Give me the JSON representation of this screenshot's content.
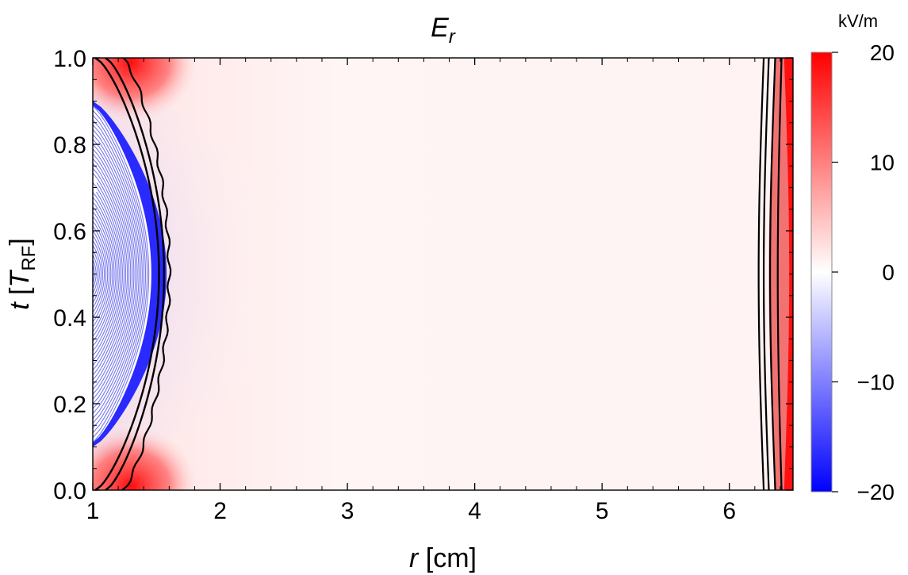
{
  "chart_data": {
    "type": "heatmap",
    "title_main": "E",
    "title_sub": "r",
    "xlabel_var": "r",
    "xlabel_unit": "[cm]",
    "ylabel_var": "t",
    "ylabel_unit_open": "[",
    "ylabel_unit_var": "T",
    "ylabel_unit_sub": "RF",
    "ylabel_unit_close": "]",
    "xlim": [
      1,
      6.5
    ],
    "ylim": [
      0,
      1
    ],
    "x_ticks": [
      "1",
      "2",
      "3",
      "4",
      "5",
      "6"
    ],
    "x_tick_values": [
      1,
      2,
      3,
      4,
      5,
      6
    ],
    "y_ticks": [
      "0.0",
      "0.2",
      "0.4",
      "0.6",
      "0.8",
      "1.0"
    ],
    "y_tick_values": [
      0,
      0.2,
      0.4,
      0.6,
      0.8,
      1.0
    ],
    "colorbar": {
      "unit": "kV/m",
      "range": [
        -20,
        20
      ],
      "ticks": [
        "20",
        "10",
        "0",
        "−10",
        "−20"
      ],
      "tick_values": [
        20,
        10,
        0,
        -10,
        -20
      ],
      "color_negative": "#0000ff",
      "color_zero": "#ffffff",
      "color_positive": "#ff0000"
    },
    "features": {
      "left_blue_region_peak_r": 1.58,
      "right_red_region_r": [
        6.25,
        6.5
      ],
      "contour_color": "#000000"
    }
  }
}
